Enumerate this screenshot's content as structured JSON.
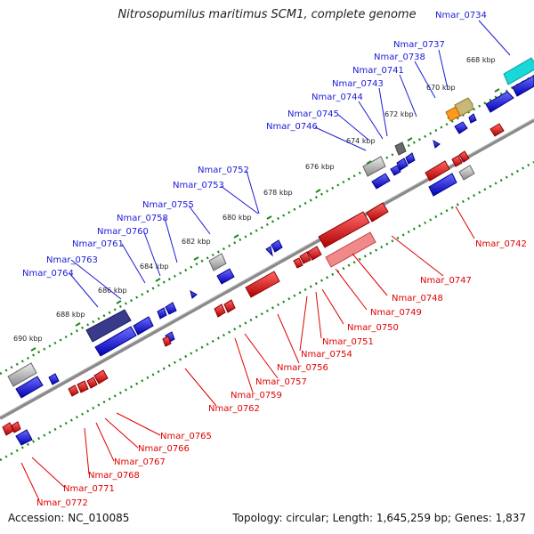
{
  "title": "Nitrosopumilus maritimus SCM1, complete genome",
  "footer": {
    "accession": "Accession: NC_010085",
    "topology": "Topology: circular; Length: 1,645,259 bp; Genes: 1,837"
  },
  "colors": {
    "forward": "#1f1fe0",
    "reverse": "#e00000",
    "backbone": "#8a8a8a",
    "ticks": "#1a8a1a"
  },
  "kbp_ticks": [
    "668 kbp",
    "670 kbp",
    "672 kbp",
    "674 kbp",
    "676 kbp",
    "678 kbp",
    "680 kbp",
    "682 kbp",
    "684 kbp",
    "686 kbp",
    "688 kbp",
    "690 kbp"
  ],
  "top_labels": [
    "Nmar_0734",
    "Nmar_0737",
    "Nmar_0738",
    "Nmar_0741",
    "Nmar_0743",
    "Nmar_0744",
    "Nmar_0745",
    "Nmar_0746",
    "Nmar_0752",
    "Nmar_0753",
    "Nmar_0755",
    "Nmar_0758",
    "Nmar_0760",
    "Nmar_0761",
    "Nmar_0763",
    "Nmar_0764"
  ],
  "bottom_labels": [
    "Nmar_0742",
    "Nmar_0747",
    "Nmar_0748",
    "Nmar_0749",
    "Nmar_0750",
    "Nmar_0751",
    "Nmar_0754",
    "Nmar_0756",
    "Nmar_0757",
    "Nmar_0759",
    "Nmar_0762",
    "Nmar_0765",
    "Nmar_0766",
    "Nmar_0767",
    "Nmar_0768",
    "Nmar_0771",
    "Nmar_0772"
  ]
}
